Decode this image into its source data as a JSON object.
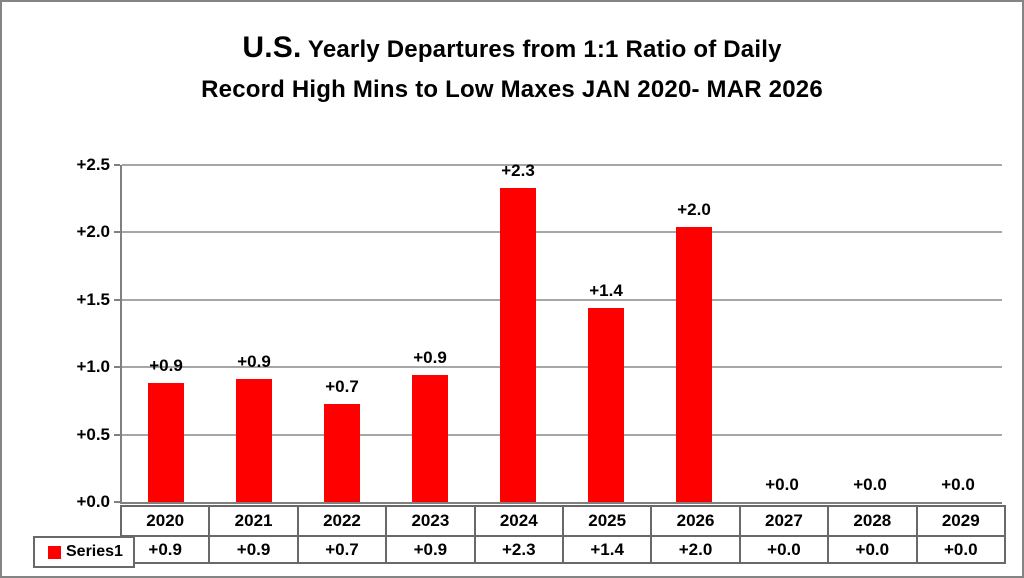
{
  "title": {
    "line1_prefix": "U.S.",
    "line1_rest": " Yearly Departures from 1:1 Ratio of Daily",
    "line2": "Record High Mins to Low Maxes JAN 2020- MAR 2026"
  },
  "legend": {
    "label": "Series1"
  },
  "colors": {
    "bar": "#FF0000",
    "gridline": "#a6a6a6",
    "axis": "#808080",
    "table_border": "#696969",
    "frame_border": "#848484",
    "text": "#000000"
  },
  "chart_data": {
    "type": "bar",
    "title": "U.S. Yearly Departures from 1:1 Ratio of Daily Record High Mins to Low Maxes JAN 2020- MAR 2026",
    "categories": [
      "2020",
      "2021",
      "2022",
      "2023",
      "2024",
      "2025",
      "2026",
      "2027",
      "2028",
      "2029"
    ],
    "series": [
      {
        "name": "Series1",
        "values": [
          0.88,
          0.91,
          0.73,
          0.94,
          2.33,
          1.44,
          2.04,
          0.0,
          0.0,
          0.0
        ],
        "data_labels": [
          "+0.9",
          "+0.9",
          "+0.7",
          "+0.9",
          "+2.3",
          "+1.4",
          "+2.0",
          "+0.0",
          "+0.0",
          "+0.0"
        ]
      }
    ],
    "xlabel": "",
    "ylabel": "",
    "ylim": [
      0,
      2.5
    ],
    "y_ticks": [
      {
        "label": "+0.0",
        "value": 0.0
      },
      {
        "label": "+0.5",
        "value": 0.5
      },
      {
        "label": "+1.0",
        "value": 1.0
      },
      {
        "label": "+1.5",
        "value": 1.5
      },
      {
        "label": "+2.0",
        "value": 2.0
      },
      {
        "label": "+2.5",
        "value": 2.5
      }
    ],
    "grid": "horizontal",
    "legend_position": "bottom-left-of-data-table",
    "data_table_shown": true
  }
}
